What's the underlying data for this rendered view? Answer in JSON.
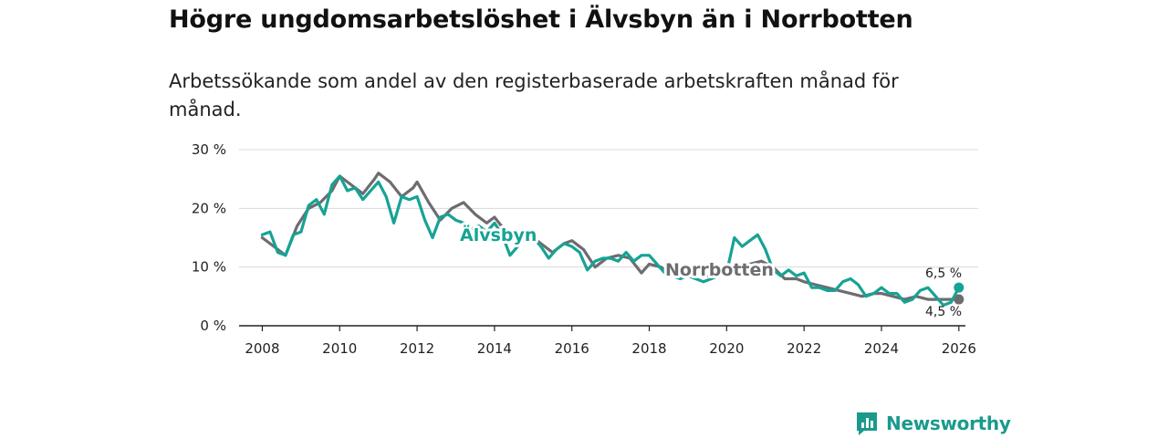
{
  "title": "Högre ungdomsarbetslöshet i Älvsbyn än i Norrbotten",
  "subtitle": "Arbetssökande som andel av den registerbaserade arbetskraften månad för månad.",
  "brand": {
    "name": "Newsworthy",
    "icon": "newsworthy-logo-icon"
  },
  "colors": {
    "alvsbyn": "#16a394",
    "norrbotten": "#6e6c70",
    "grid": "#d9d9d9",
    "axis": "#222222"
  },
  "chart_data": {
    "type": "line",
    "title": "Högre ungdomsarbetslöshet i Älvsbyn än i Norrbotten",
    "xlabel": "",
    "ylabel": "",
    "xlim": [
      2007.4,
      2026.5
    ],
    "ylim": [
      0,
      30
    ],
    "y_ticks": [
      0,
      10,
      20,
      30
    ],
    "y_tick_labels": [
      "0 %",
      "10 %",
      "20 %",
      "30 %"
    ],
    "x_ticks": [
      2008,
      2010,
      2012,
      2014,
      2016,
      2018,
      2020,
      2022,
      2024,
      2026
    ],
    "x_tick_labels": [
      "2008",
      "2010",
      "2012",
      "2014",
      "2016",
      "2018",
      "2020",
      "2022",
      "2024",
      "2026"
    ],
    "grid": true,
    "series": [
      {
        "name": "Norrbotten",
        "label": "Norrbotten",
        "end_label": "4,5 %",
        "end_value": 4.5,
        "x": [
          2008.0,
          2008.3,
          2008.6,
          2008.9,
          2009.2,
          2009.5,
          2009.8,
          2010.0,
          2010.3,
          2010.6,
          2010.9,
          2011.0,
          2011.3,
          2011.6,
          2011.9,
          2012.0,
          2012.3,
          2012.6,
          2012.9,
          2013.2,
          2013.5,
          2013.8,
          2014.0,
          2014.3,
          2014.6,
          2014.9,
          2015.2,
          2015.5,
          2015.8,
          2016.0,
          2016.3,
          2016.6,
          2016.9,
          2017.2,
          2017.5,
          2017.8,
          2018.0,
          2018.3,
          2018.6,
          2018.9,
          2019.2,
          2019.5,
          2019.8,
          2020.0,
          2020.3,
          2020.6,
          2020.9,
          2021.2,
          2021.5,
          2021.8,
          2022.0,
          2022.3,
          2022.6,
          2022.9,
          2023.2,
          2023.5,
          2023.8,
          2024.0,
          2024.3,
          2024.6,
          2024.9,
          2025.2,
          2025.5,
          2025.8,
          2026.0
        ],
        "values": [
          15.0,
          13.5,
          12.0,
          17.0,
          20.0,
          21.0,
          23.0,
          25.5,
          24.0,
          22.5,
          25.0,
          26.0,
          24.5,
          22.0,
          23.5,
          24.5,
          21.0,
          18.0,
          20.0,
          21.0,
          19.0,
          17.5,
          18.5,
          16.0,
          14.0,
          15.5,
          14.0,
          12.5,
          14.0,
          14.5,
          13.0,
          10.0,
          11.5,
          12.0,
          11.5,
          9.0,
          10.5,
          10.0,
          8.5,
          8.5,
          9.0,
          8.5,
          9.5,
          10.0,
          9.5,
          10.5,
          11.0,
          10.0,
          8.0,
          8.0,
          7.5,
          7.0,
          6.5,
          6.0,
          5.5,
          5.0,
          5.5,
          5.5,
          5.0,
          4.5,
          5.0,
          4.5,
          4.5,
          4.5,
          4.5
        ]
      },
      {
        "name": "Älvsbyn",
        "label": "Älvsbyn",
        "end_label": "6,5 %",
        "end_value": 6.5,
        "x": [
          2008.0,
          2008.2,
          2008.4,
          2008.6,
          2008.8,
          2009.0,
          2009.2,
          2009.4,
          2009.6,
          2009.8,
          2010.0,
          2010.2,
          2010.4,
          2010.6,
          2010.8,
          2011.0,
          2011.2,
          2011.4,
          2011.6,
          2011.8,
          2012.0,
          2012.2,
          2012.4,
          2012.6,
          2012.8,
          2013.0,
          2013.2,
          2013.4,
          2013.6,
          2013.8,
          2014.0,
          2014.2,
          2014.4,
          2014.6,
          2014.8,
          2015.0,
          2015.2,
          2015.4,
          2015.6,
          2015.8,
          2016.0,
          2016.2,
          2016.4,
          2016.6,
          2016.8,
          2017.0,
          2017.2,
          2017.4,
          2017.6,
          2017.8,
          2018.0,
          2018.2,
          2018.4,
          2018.6,
          2018.8,
          2019.0,
          2019.2,
          2019.4,
          2019.6,
          2019.8,
          2020.0,
          2020.2,
          2020.4,
          2020.6,
          2020.8,
          2021.0,
          2021.2,
          2021.4,
          2021.6,
          2021.8,
          2022.0,
          2022.2,
          2022.4,
          2022.6,
          2022.8,
          2023.0,
          2023.2,
          2023.4,
          2023.6,
          2023.8,
          2024.0,
          2024.2,
          2024.4,
          2024.6,
          2024.8,
          2025.0,
          2025.2,
          2025.4,
          2025.6,
          2025.8,
          2026.0
        ],
        "values": [
          15.5,
          16.0,
          12.5,
          12.0,
          15.5,
          16.0,
          20.5,
          21.5,
          19.0,
          24.0,
          25.5,
          23.0,
          23.5,
          21.5,
          23.0,
          24.5,
          22.0,
          17.5,
          22.0,
          21.5,
          22.0,
          18.0,
          15.0,
          18.5,
          19.0,
          18.0,
          17.5,
          16.5,
          17.0,
          16.0,
          17.5,
          15.5,
          12.0,
          13.5,
          15.5,
          15.0,
          13.5,
          11.5,
          13.0,
          14.0,
          13.5,
          12.5,
          9.5,
          11.0,
          11.5,
          11.5,
          11.0,
          12.5,
          11.0,
          12.0,
          12.0,
          10.5,
          9.0,
          8.5,
          8.0,
          8.5,
          8.0,
          7.5,
          8.0,
          8.5,
          9.0,
          15.0,
          13.5,
          14.5,
          15.5,
          13.0,
          9.5,
          8.5,
          9.5,
          8.5,
          9.0,
          6.5,
          6.5,
          6.0,
          6.0,
          7.5,
          8.0,
          7.0,
          5.0,
          5.5,
          6.5,
          5.5,
          5.5,
          4.0,
          4.5,
          6.0,
          6.5,
          5.0,
          3.5,
          4.0,
          6.5
        ]
      }
    ]
  }
}
